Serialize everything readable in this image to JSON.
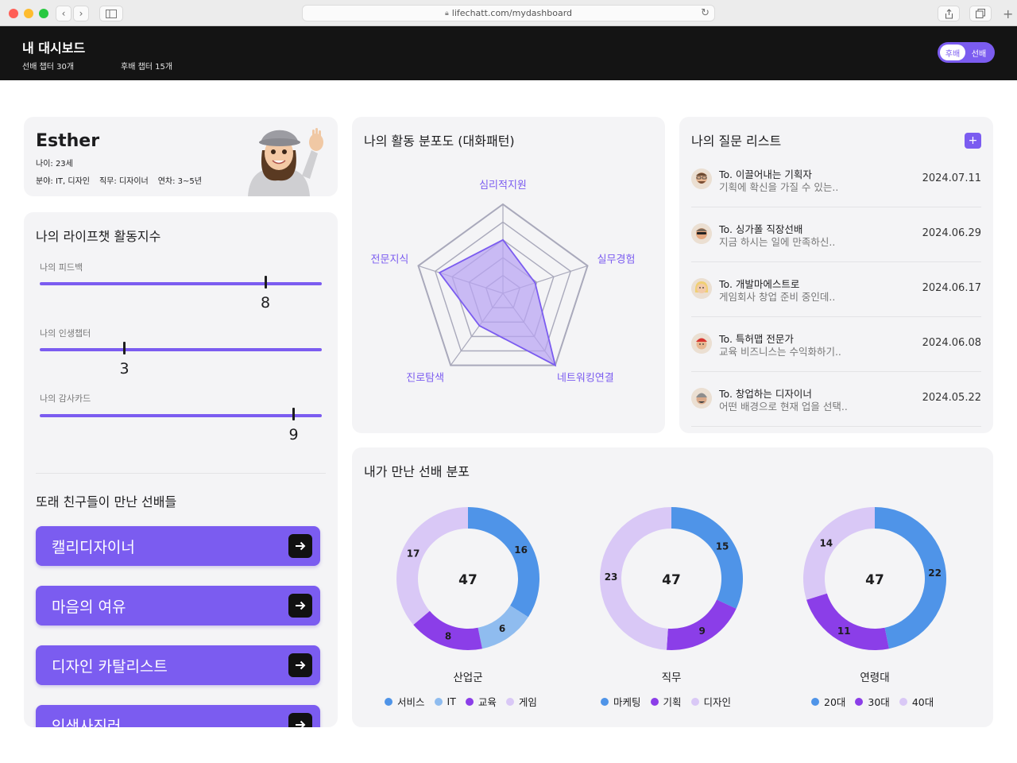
{
  "browser": {
    "url": "lifechatt.com/mydashboard"
  },
  "header": {
    "title": "내 대시보드",
    "senior_chapters": "선배 챕터 30개",
    "junior_chapters": "후배 챕터 15개",
    "toggle": {
      "left_label": "후배",
      "right_label": "선배"
    }
  },
  "profile": {
    "name": "Esther",
    "age": "나이: 23세",
    "field": "분야: IT, 디자인",
    "job": "직무: 디자이너",
    "years": "연차: 3~5년"
  },
  "activity": {
    "title": "나의 라이프챗 활동지수",
    "sliders": [
      {
        "label": "나의 피드백",
        "value": 8,
        "value_text": "8"
      },
      {
        "label": "나의 인생챕터",
        "value": 3,
        "value_text": "3"
      },
      {
        "label": "나의 감사카드",
        "value": 9,
        "value_text": "9"
      }
    ],
    "scale_max": 10
  },
  "friends": {
    "title": "또래 친구들이 만난 선배들",
    "items": [
      {
        "label": "캘리디자이너"
      },
      {
        "label": "마음의 여유"
      },
      {
        "label": "디자인 카탈리스트"
      },
      {
        "label": "인생사진러"
      }
    ]
  },
  "radar": {
    "title": "나의 활동 분포도 (대화패턴)",
    "axes": [
      "심리적지원",
      "실무경험",
      "네트워킹연결",
      "진로탐색",
      "전문지식"
    ],
    "values": [
      0.6,
      0.38,
      1.0,
      0.45,
      0.75
    ],
    "levels": 5,
    "colors": {
      "fill": "#b9a3f2",
      "stroke": "#7b5cf0",
      "grid": "#a9a9bb",
      "label": "#7b5cf0"
    }
  },
  "questions": {
    "title": "나의 질문 리스트",
    "add_label": "+",
    "items": [
      {
        "to": "To. 이끌어내는 기획자",
        "preview": "기획에 확신을 가질 수 있는..",
        "date": "2024.07.11",
        "avatar": "avatar-glasses-man-icon"
      },
      {
        "to": "To. 싱가폴 직장선배",
        "preview": "지금 하시는 일에 만족하신..",
        "date": "2024.06.29",
        "avatar": "avatar-sunglasses-icon"
      },
      {
        "to": "To. 개발마에스트로",
        "preview": "게임회사 창업 준비 중인데..",
        "date": "2024.06.17",
        "avatar": "avatar-blonde-woman-icon"
      },
      {
        "to": "To. 특허맵 전문가",
        "preview": "교육 비즈니스는 수익화하기..",
        "date": "2024.06.08",
        "avatar": "avatar-red-cap-icon"
      },
      {
        "to": "To. 창업하는 디자이너",
        "preview": "어떤 배경으로 현재 업을 선택..",
        "date": "2024.05.22",
        "avatar": "avatar-beanie-icon"
      }
    ]
  },
  "distribution": {
    "title": "내가 만난 선배 분포"
  },
  "chart_data": [
    {
      "type": "pie",
      "title": "산업군",
      "center_label": "47",
      "categories": [
        "서비스",
        "IT",
        "교육",
        "게임"
      ],
      "values": [
        16,
        6,
        8,
        17
      ],
      "colors": [
        "#4f94e8",
        "#8fbcef",
        "#8b3ee8",
        "#d9c8f6"
      ]
    },
    {
      "type": "pie",
      "title": "직무",
      "center_label": "47",
      "categories": [
        "마케팅",
        "기획",
        "디자인"
      ],
      "values": [
        15,
        9,
        23
      ],
      "colors": [
        "#4f94e8",
        "#8b3ee8",
        "#d9c8f6"
      ]
    },
    {
      "type": "pie",
      "title": "연령대",
      "center_label": "47",
      "categories": [
        "20대",
        "30대",
        "40대"
      ],
      "values": [
        22,
        11,
        14
      ],
      "colors": [
        "#4f94e8",
        "#8b3ee8",
        "#d9c8f6"
      ]
    }
  ]
}
